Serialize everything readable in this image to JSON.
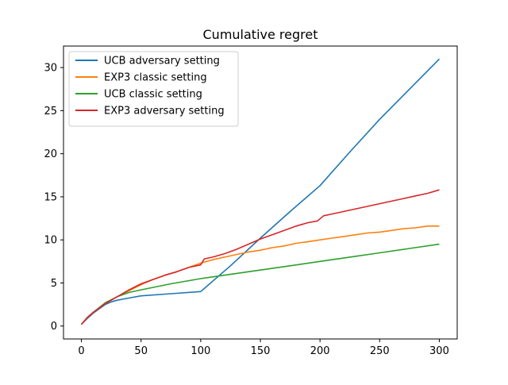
{
  "chart_data": {
    "type": "line",
    "title": "Cumulative regret",
    "xlabel": "",
    "ylabel": "",
    "xlim": [
      -15,
      315
    ],
    "ylim": [
      -1.5,
      32.5
    ],
    "xticks": [
      0,
      50,
      100,
      150,
      200,
      250,
      300
    ],
    "yticks": [
      0,
      5,
      10,
      15,
      20,
      25,
      30
    ],
    "grid": false,
    "legend_position": "top-left",
    "series": [
      {
        "name": "UCB adversary setting",
        "color": "#1f77b4",
        "x": [
          0,
          5,
          10,
          15,
          20,
          25,
          30,
          40,
          50,
          75,
          100,
          125,
          150,
          175,
          200,
          225,
          250,
          275,
          300
        ],
        "y": [
          0.2,
          0.9,
          1.5,
          2.0,
          2.5,
          2.8,
          3.0,
          3.25,
          3.5,
          3.75,
          4.0,
          7.0,
          10.2,
          13.3,
          16.3,
          20.2,
          24.0,
          27.5,
          31.0
        ]
      },
      {
        "name": "EXP3 classic setting",
        "color": "#ff7f0e",
        "x": [
          0,
          5,
          10,
          20,
          30,
          40,
          50,
          60,
          70,
          80,
          90,
          100,
          110,
          120,
          130,
          140,
          150,
          160,
          170,
          180,
          190,
          200,
          210,
          220,
          230,
          240,
          250,
          260,
          270,
          280,
          290,
          300
        ],
        "y": [
          0.2,
          1.0,
          1.6,
          2.6,
          3.4,
          4.1,
          4.8,
          5.4,
          5.9,
          6.3,
          6.8,
          7.3,
          7.7,
          8.0,
          8.3,
          8.6,
          8.8,
          9.1,
          9.3,
          9.6,
          9.8,
          10.0,
          10.2,
          10.4,
          10.6,
          10.8,
          10.9,
          11.1,
          11.3,
          11.4,
          11.6,
          11.6
        ]
      },
      {
        "name": "UCB classic setting",
        "color": "#2ca02c",
        "x": [
          0,
          5,
          10,
          20,
          30,
          40,
          50,
          75,
          100,
          125,
          150,
          175,
          200,
          225,
          250,
          275,
          300
        ],
        "y": [
          0.2,
          1.0,
          1.6,
          2.7,
          3.4,
          3.9,
          4.2,
          4.9,
          5.5,
          6.0,
          6.5,
          7.0,
          7.5,
          8.0,
          8.5,
          9.0,
          9.5
        ]
      },
      {
        "name": "EXP3 adversary setting",
        "color": "#d62728",
        "x": [
          0,
          5,
          10,
          20,
          30,
          40,
          50,
          60,
          70,
          80,
          90,
          100,
          103,
          110,
          120,
          130,
          140,
          150,
          160,
          170,
          180,
          190,
          198,
          203,
          210,
          220,
          230,
          240,
          250,
          260,
          270,
          280,
          290,
          300
        ],
        "y": [
          0.2,
          1.0,
          1.6,
          2.6,
          3.4,
          4.2,
          4.9,
          5.4,
          5.9,
          6.3,
          6.8,
          7.1,
          7.8,
          8.0,
          8.4,
          8.9,
          9.5,
          10.1,
          10.6,
          11.1,
          11.6,
          12.0,
          12.2,
          12.8,
          13.0,
          13.3,
          13.6,
          13.9,
          14.2,
          14.5,
          14.8,
          15.1,
          15.4,
          15.8
        ]
      }
    ]
  }
}
